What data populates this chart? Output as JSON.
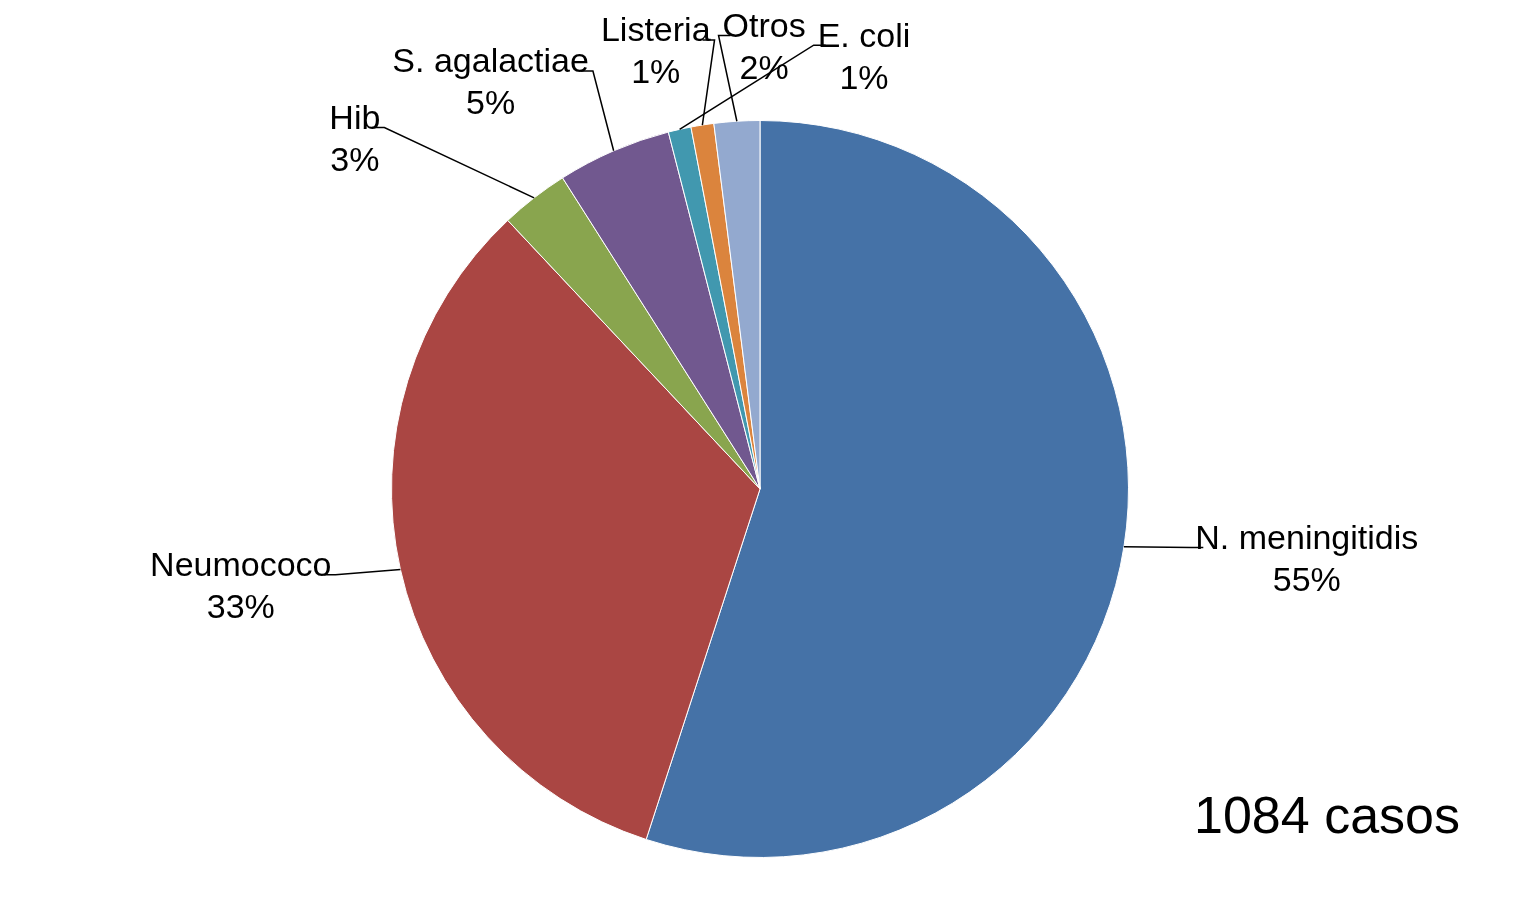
{
  "chart_data": {
    "type": "pie",
    "categories": [
      "N. meningitidis",
      "Neumococo",
      "Hib",
      "S. agalactiae",
      "E. coli",
      "Listeria",
      "Otros"
    ],
    "values": [
      55,
      33,
      3,
      5,
      1,
      1,
      2
    ],
    "value_labels": [
      "55%",
      "33%",
      "3%",
      "5%",
      "1%",
      "1%",
      "2%"
    ],
    "colors": [
      "#4572a7",
      "#aa4643",
      "#89a54e",
      "#71588f",
      "#4198af",
      "#db843d",
      "#93a9cf"
    ],
    "legend": false,
    "annotations": [
      "1084 casos"
    ]
  }
}
